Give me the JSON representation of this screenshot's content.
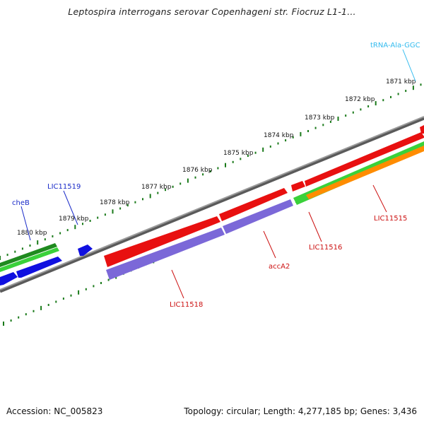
{
  "title": "Leptospira interrogans serovar Copenhageni str. Fiocruz L1-1...",
  "footer": {
    "accession": "Accession: NC_005823",
    "info": "Topology: circular; Length: 4,277,185 bp; Genes: 3,436"
  },
  "ticks": [
    "1871 kbp",
    "1872 kbp",
    "1873 kbp",
    "1874 kbp",
    "1875 kbp",
    "1876 kbp",
    "1877 kbp",
    "1878 kbp",
    "1879 kbp",
    "1880 kbp"
  ],
  "gene_labels": [
    {
      "text": "tRNA-Ala-GGC",
      "color": "#33bbee"
    },
    {
      "text": "cheB",
      "color": "#1a2bc8"
    },
    {
      "text": "LIC11519",
      "color": "#1a2bc8"
    },
    {
      "text": "LIC11518",
      "color": "#cc1111"
    },
    {
      "text": "accA2",
      "color": "#cc1111"
    },
    {
      "text": "LIC11516",
      "color": "#cc1111"
    },
    {
      "text": "LIC11515",
      "color": "#cc1111"
    }
  ],
  "colors": {
    "backbone": "#808080",
    "cds_forward": "#e81010",
    "cds_reverse": "#1010e0",
    "gene_green_dark": "#1f8a1f",
    "gene_green_light": "#3ad13a",
    "gene_orange": "#ff8c00",
    "gene_purple": "#7b68d8",
    "tick_marks": "#1a7a1a"
  }
}
